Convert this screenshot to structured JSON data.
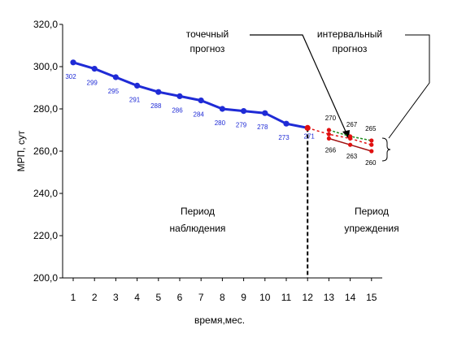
{
  "chart_data": {
    "type": "line",
    "ylabel": "МРП, сут",
    "xlabel": "время,мес.",
    "ylim": [
      200,
      320
    ],
    "yticks": [
      "200,0",
      "220,0",
      "240,0",
      "260,0",
      "280,0",
      "300,0",
      "320,0"
    ],
    "xticks": [
      "1",
      "2",
      "3",
      "4",
      "5",
      "6",
      "7",
      "8",
      "9",
      "10",
      "11",
      "12",
      "13",
      "14",
      "15"
    ],
    "grid": false,
    "legend": "none",
    "colors": {
      "observed": "#1f2bd6",
      "point_forecast": "#e01010",
      "upper": "#1a8a1a",
      "lower": "#a01010"
    },
    "series": [
      {
        "x": [
          1,
          2,
          3,
          4,
          5,
          6,
          7,
          8,
          9,
          10,
          11,
          12
        ],
        "values": [
          302,
          299,
          295,
          291,
          288,
          286,
          284,
          280,
          279,
          278,
          273,
          271
        ],
        "labels": [
          "302",
          "299",
          "295",
          "291",
          "288",
          "286",
          "284",
          "280",
          "279",
          "278",
          "273",
          "271"
        ]
      },
      {
        "x": [
          12,
          13,
          14,
          15
        ],
        "values": [
          271,
          268,
          266,
          263
        ]
      },
      {
        "x": [
          13,
          14,
          15
        ],
        "values": [
          270,
          267,
          265
        ],
        "labels": [
          "270",
          "267",
          "265"
        ]
      },
      {
        "x": [
          13,
          14,
          15
        ],
        "values": [
          266,
          263,
          260
        ],
        "labels": [
          "266",
          "263",
          "260"
        ]
      }
    ],
    "annotations": {
      "point_forecast": [
        "точечный",
        "прогноз"
      ],
      "interval_forecast": [
        "интервальный",
        "прогноз"
      ],
      "observation_period": [
        "Период",
        "наблюдения"
      ],
      "forecast_period": [
        "Период",
        "упреждения"
      ]
    }
  }
}
